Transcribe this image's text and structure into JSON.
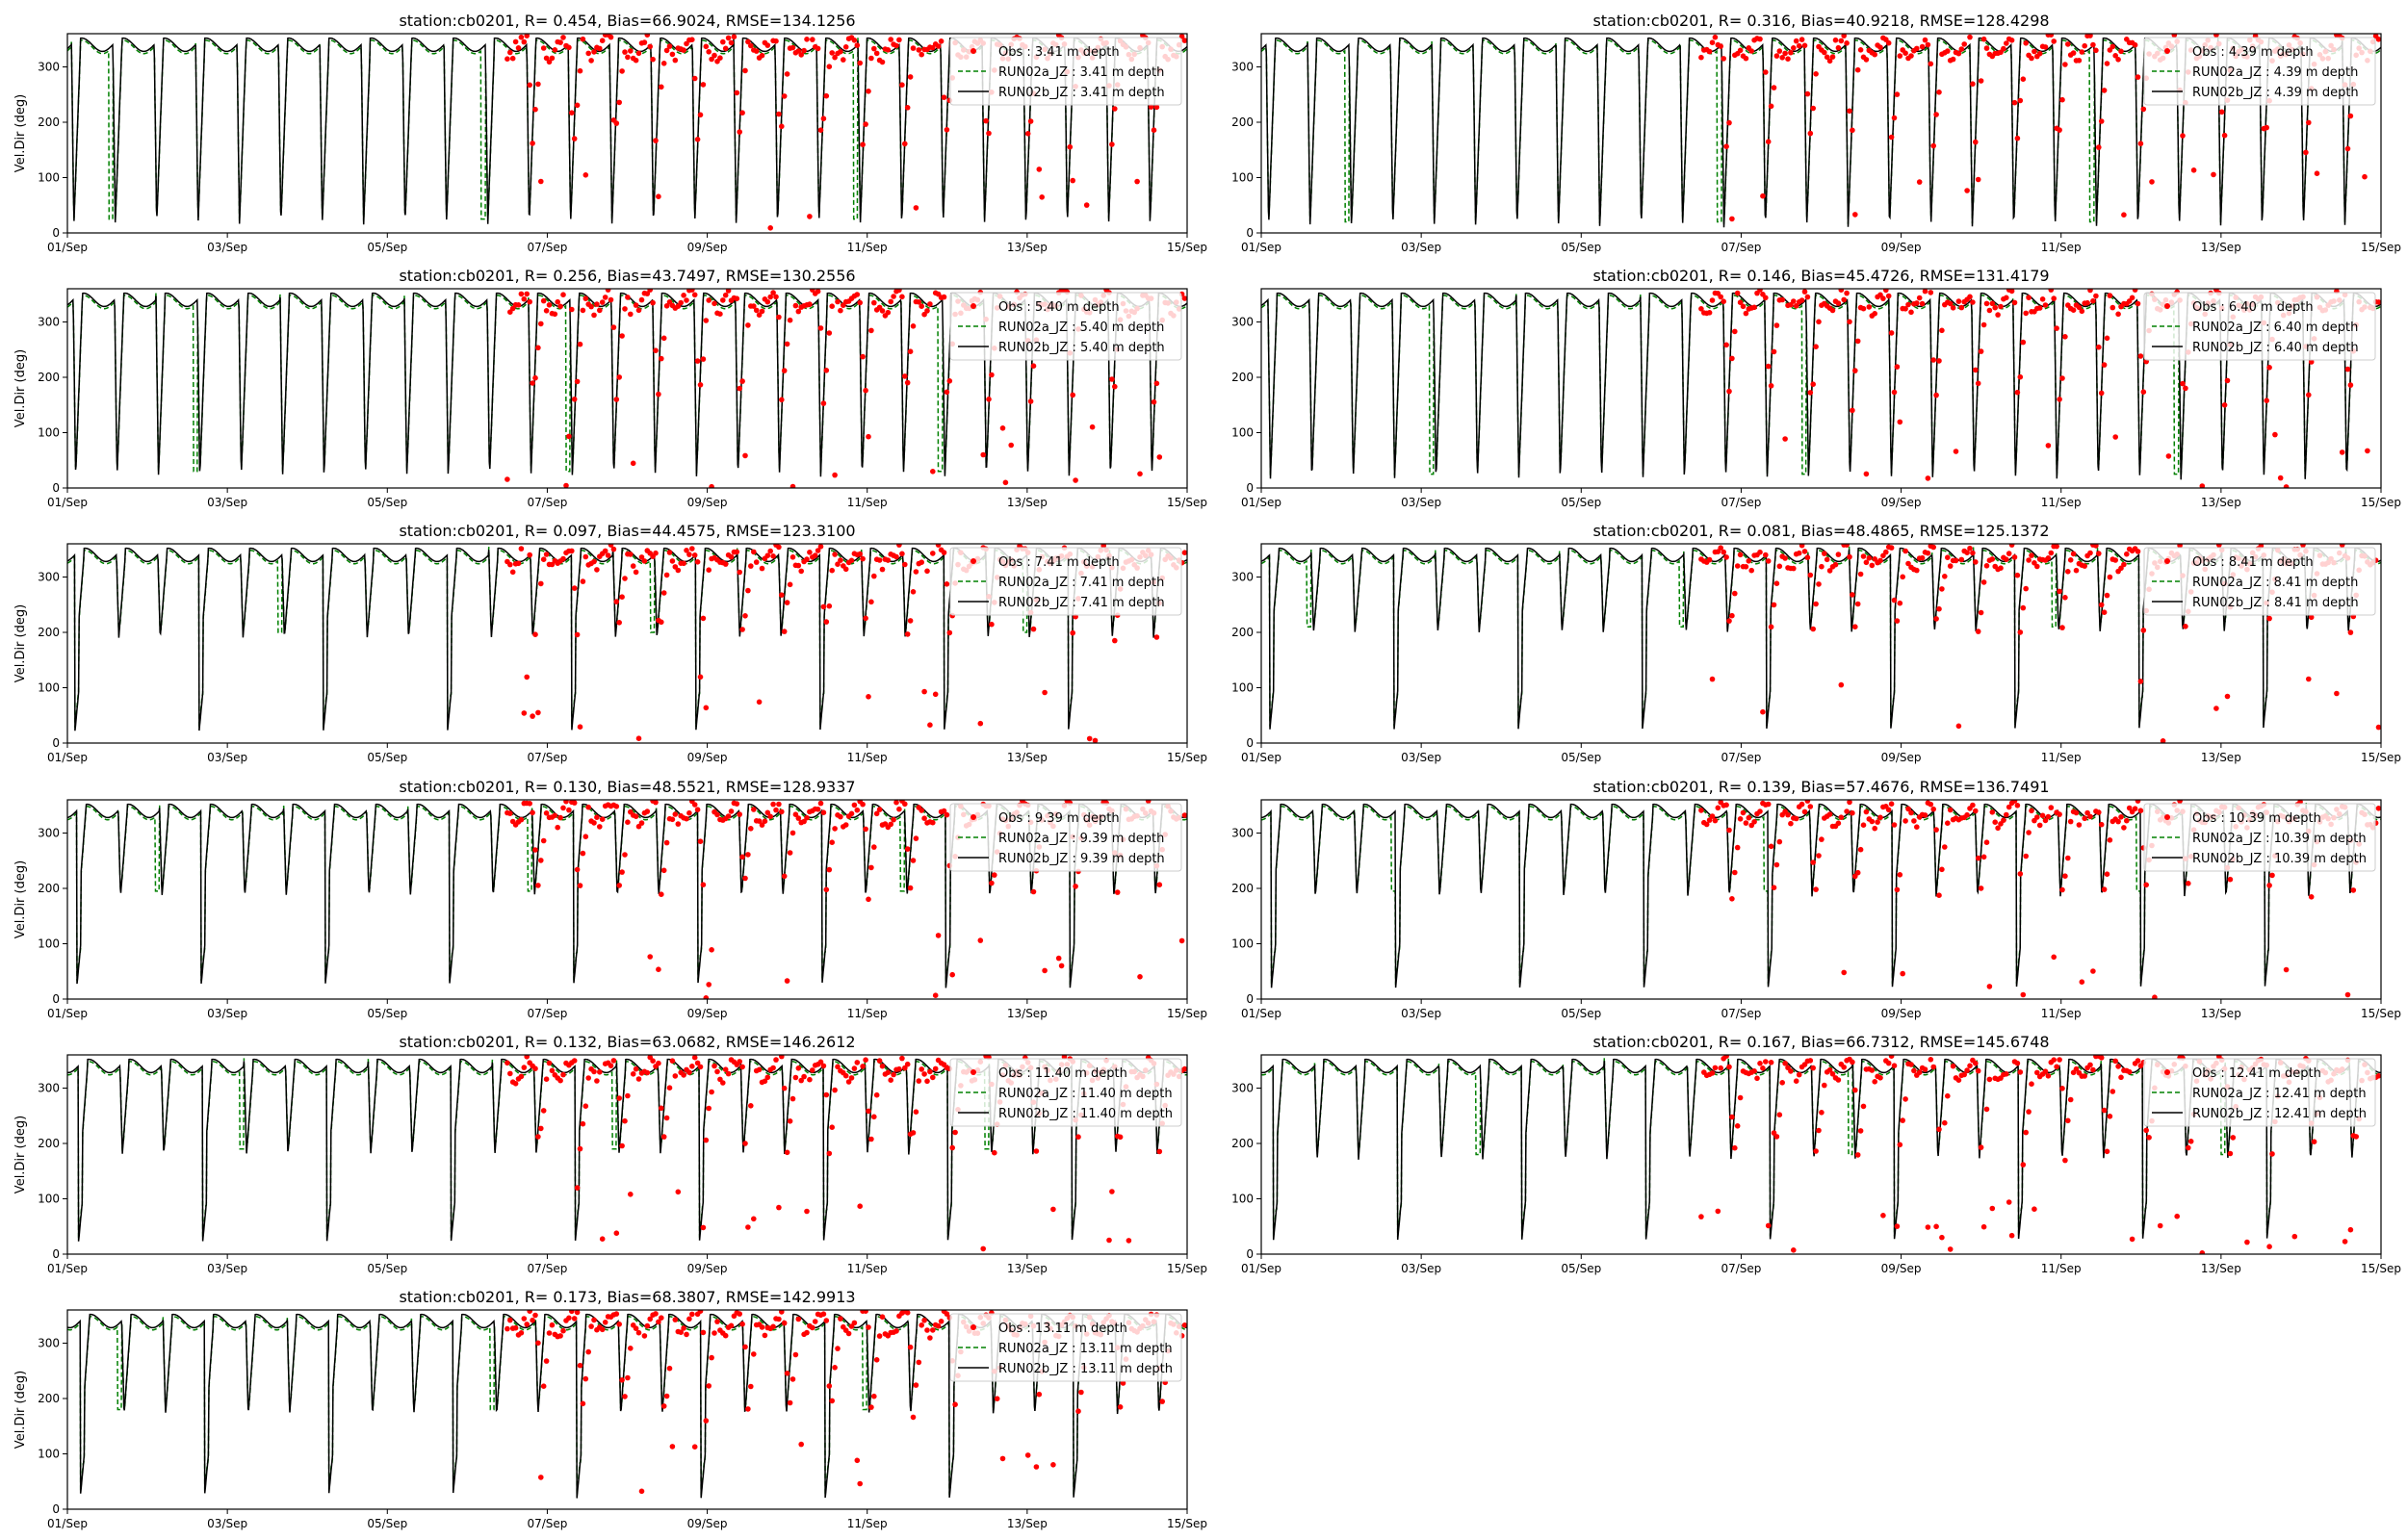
{
  "chart_data": [
    {
      "type": "line",
      "title": "station:cb0201, R= 0.454, Bias=66.9024, RMSE=134.1256",
      "ylabel": "Vel.Dir (deg)",
      "xlabel": "",
      "x_ticks": [
        "01/Sep",
        "03/Sep",
        "05/Sep",
        "07/Sep",
        "09/Sep",
        "11/Sep",
        "13/Sep",
        "15/Sep"
      ],
      "xlim": [
        "2023-09-01",
        "2023-09-15"
      ],
      "ylim": [
        0,
        360
      ],
      "y_ticks": [
        0,
        100,
        200,
        300
      ],
      "legend_position": "top-right",
      "obs_start_day": 5.5,
      "trough": 15,
      "series": [
        {
          "name": "Obs : 3.41 m depth",
          "style": "red-dots"
        },
        {
          "name": "RUN02a_JZ : 3.41 m depth",
          "style": "green-dashed"
        },
        {
          "name": "RUN02b_JZ : 3.41 m depth",
          "style": "black-solid"
        }
      ]
    },
    {
      "type": "line",
      "title": "station:cb0201, R= 0.316, Bias=40.9218, RMSE=128.4298",
      "ylabel": "",
      "xlabel": "",
      "x_ticks": [
        "01/Sep",
        "03/Sep",
        "05/Sep",
        "07/Sep",
        "09/Sep",
        "11/Sep",
        "13/Sep",
        "15/Sep"
      ],
      "xlim": [
        "2023-09-01",
        "2023-09-15"
      ],
      "ylim": [
        0,
        360
      ],
      "y_ticks": [
        0,
        100,
        200,
        300
      ],
      "legend_position": "top-right",
      "obs_start_day": 5.5,
      "trough": 10,
      "series": [
        {
          "name": "Obs : 4.39 m depth",
          "style": "red-dots"
        },
        {
          "name": "RUN02a_JZ : 4.39 m depth",
          "style": "green-dashed"
        },
        {
          "name": "RUN02b_JZ : 4.39 m depth",
          "style": "black-solid"
        }
      ]
    },
    {
      "type": "line",
      "title": "station:cb0201, R= 0.256, Bias=43.7497, RMSE=130.2556",
      "ylabel": "Vel.Dir (deg)",
      "xlabel": "",
      "x_ticks": [
        "01/Sep",
        "03/Sep",
        "05/Sep",
        "07/Sep",
        "09/Sep",
        "11/Sep",
        "13/Sep",
        "15/Sep"
      ],
      "xlim": [
        "2023-09-01",
        "2023-09-15"
      ],
      "ylim": [
        0,
        360
      ],
      "y_ticks": [
        0,
        100,
        200,
        300
      ],
      "legend_position": "top-right",
      "obs_start_day": 5.5,
      "trough": 20,
      "series": [
        {
          "name": "Obs : 5.40 m depth",
          "style": "red-dots"
        },
        {
          "name": "RUN02a_JZ : 5.40 m depth",
          "style": "green-dashed"
        },
        {
          "name": "RUN02b_JZ : 5.40 m depth",
          "style": "black-solid"
        }
      ]
    },
    {
      "type": "line",
      "title": "station:cb0201, R= 0.146, Bias=45.4726, RMSE=131.4179",
      "ylabel": "",
      "xlabel": "",
      "x_ticks": [
        "01/Sep",
        "03/Sep",
        "05/Sep",
        "07/Sep",
        "09/Sep",
        "11/Sep",
        "13/Sep",
        "15/Sep"
      ],
      "xlim": [
        "2023-09-01",
        "2023-09-15"
      ],
      "ylim": [
        0,
        360
      ],
      "y_ticks": [
        0,
        100,
        200,
        300
      ],
      "legend_position": "top-right",
      "obs_start_day": 5.5,
      "trough": 15,
      "series": [
        {
          "name": "Obs : 6.40 m depth",
          "style": "red-dots"
        },
        {
          "name": "RUN02a_JZ : 6.40 m depth",
          "style": "green-dashed"
        },
        {
          "name": "RUN02b_JZ : 6.40 m depth",
          "style": "black-solid"
        }
      ]
    },
    {
      "type": "line",
      "title": "station:cb0201, R= 0.097, Bias=44.4575, RMSE=123.3100",
      "ylabel": "Vel.Dir (deg)",
      "xlabel": "",
      "x_ticks": [
        "01/Sep",
        "03/Sep",
        "05/Sep",
        "07/Sep",
        "09/Sep",
        "11/Sep",
        "13/Sep",
        "15/Sep"
      ],
      "xlim": [
        "2023-09-01",
        "2023-09-15"
      ],
      "ylim": [
        0,
        360
      ],
      "y_ticks": [
        0,
        100,
        200,
        300
      ],
      "legend_position": "top-right",
      "obs_start_day": 5.5,
      "trough": 190,
      "series": [
        {
          "name": "Obs : 7.41 m depth",
          "style": "red-dots"
        },
        {
          "name": "RUN02a_JZ : 7.41 m depth",
          "style": "green-dashed"
        },
        {
          "name": "RUN02b_JZ : 7.41 m depth",
          "style": "black-solid"
        }
      ]
    },
    {
      "type": "line",
      "title": "station:cb0201, R= 0.081, Bias=48.4865, RMSE=125.1372",
      "ylabel": "",
      "xlabel": "",
      "x_ticks": [
        "01/Sep",
        "03/Sep",
        "05/Sep",
        "07/Sep",
        "09/Sep",
        "11/Sep",
        "13/Sep",
        "15/Sep"
      ],
      "xlim": [
        "2023-09-01",
        "2023-09-15"
      ],
      "ylim": [
        0,
        360
      ],
      "y_ticks": [
        0,
        100,
        200,
        300
      ],
      "legend_position": "top-right",
      "obs_start_day": 5.5,
      "trough": 200,
      "series": [
        {
          "name": "Obs : 8.41 m depth",
          "style": "red-dots"
        },
        {
          "name": "RUN02a_JZ : 8.41 m depth",
          "style": "green-dashed"
        },
        {
          "name": "RUN02b_JZ : 8.41 m depth",
          "style": "black-solid"
        }
      ]
    },
    {
      "type": "line",
      "title": "station:cb0201, R= 0.130, Bias=48.5521, RMSE=128.9337",
      "ylabel": "Vel.Dir (deg)",
      "xlabel": "",
      "x_ticks": [
        "01/Sep",
        "03/Sep",
        "05/Sep",
        "07/Sep",
        "09/Sep",
        "11/Sep",
        "13/Sep",
        "15/Sep"
      ],
      "xlim": [
        "2023-09-01",
        "2023-09-15"
      ],
      "ylim": [
        0,
        360
      ],
      "y_ticks": [
        0,
        100,
        200,
        300
      ],
      "legend_position": "top-right",
      "obs_start_day": 5.5,
      "trough": 185,
      "series": [
        {
          "name": "Obs : 9.39 m depth",
          "style": "red-dots"
        },
        {
          "name": "RUN02a_JZ : 9.39 m depth",
          "style": "green-dashed"
        },
        {
          "name": "RUN02b_JZ : 9.39 m depth",
          "style": "black-solid"
        }
      ]
    },
    {
      "type": "line",
      "title": "station:cb0201, R= 0.139, Bias=57.4676, RMSE=136.7491",
      "ylabel": "",
      "xlabel": "",
      "x_ticks": [
        "01/Sep",
        "03/Sep",
        "05/Sep",
        "07/Sep",
        "09/Sep",
        "11/Sep",
        "13/Sep",
        "15/Sep"
      ],
      "xlim": [
        "2023-09-01",
        "2023-09-15"
      ],
      "ylim": [
        0,
        360
      ],
      "y_ticks": [
        0,
        100,
        200,
        300
      ],
      "legend_position": "top-right",
      "obs_start_day": 5.5,
      "trough": 185,
      "series": [
        {
          "name": "Obs : 10.39 m depth",
          "style": "red-dots"
        },
        {
          "name": "RUN02a_JZ : 10.39 m depth",
          "style": "green-dashed"
        },
        {
          "name": "RUN02b_JZ : 10.39 m depth",
          "style": "black-solid"
        }
      ]
    },
    {
      "type": "line",
      "title": "station:cb0201, R= 0.132, Bias=63.0682, RMSE=146.2612",
      "ylabel": "Vel.Dir (deg)",
      "xlabel": "",
      "x_ticks": [
        "01/Sep",
        "03/Sep",
        "05/Sep",
        "07/Sep",
        "09/Sep",
        "11/Sep",
        "13/Sep",
        "15/Sep"
      ],
      "xlim": [
        "2023-09-01",
        "2023-09-15"
      ],
      "ylim": [
        0,
        360
      ],
      "y_ticks": [
        0,
        100,
        200,
        300
      ],
      "legend_position": "top-right",
      "obs_start_day": 5.5,
      "trough": 180,
      "series": [
        {
          "name": "Obs : 11.40 m depth",
          "style": "red-dots"
        },
        {
          "name": "RUN02a_JZ : 11.40 m depth",
          "style": "green-dashed"
        },
        {
          "name": "RUN02b_JZ : 11.40 m depth",
          "style": "black-solid"
        }
      ]
    },
    {
      "type": "line",
      "title": "station:cb0201, R= 0.167, Bias=66.7312, RMSE=145.6748",
      "ylabel": "",
      "xlabel": "",
      "x_ticks": [
        "01/Sep",
        "03/Sep",
        "05/Sep",
        "07/Sep",
        "09/Sep",
        "11/Sep",
        "13/Sep",
        "15/Sep"
      ],
      "xlim": [
        "2023-09-01",
        "2023-09-15"
      ],
      "ylim": [
        0,
        360
      ],
      "y_ticks": [
        0,
        100,
        200,
        300
      ],
      "legend_position": "top-right",
      "obs_start_day": 5.5,
      "trough": 170,
      "series": [
        {
          "name": "Obs : 12.41 m depth",
          "style": "red-dots"
        },
        {
          "name": "RUN02a_JZ : 12.41 m depth",
          "style": "green-dashed"
        },
        {
          "name": "RUN02b_JZ : 12.41 m depth",
          "style": "black-solid"
        }
      ]
    },
    {
      "type": "line",
      "title": "station:cb0201, R= 0.173, Bias=68.3807, RMSE=142.9913",
      "ylabel": "Vel.Dir (deg)",
      "xlabel": "",
      "x_ticks": [
        "01/Sep",
        "03/Sep",
        "05/Sep",
        "07/Sep",
        "09/Sep",
        "11/Sep",
        "13/Sep",
        "15/Sep"
      ],
      "xlim": [
        "2023-09-01",
        "2023-09-15"
      ],
      "ylim": [
        0,
        360
      ],
      "y_ticks": [
        0,
        100,
        200,
        300
      ],
      "legend_position": "top-right",
      "obs_start_day": 5.5,
      "trough": 170,
      "series": [
        {
          "name": "Obs : 13.11 m depth",
          "style": "red-dots"
        },
        {
          "name": "RUN02a_JZ : 13.11 m depth",
          "style": "green-dashed"
        },
        {
          "name": "RUN02b_JZ : 13.11 m depth",
          "style": "black-solid"
        }
      ]
    }
  ],
  "colors": {
    "obs": "#ff0000",
    "run02a": "#008000",
    "run02b": "#000000"
  }
}
